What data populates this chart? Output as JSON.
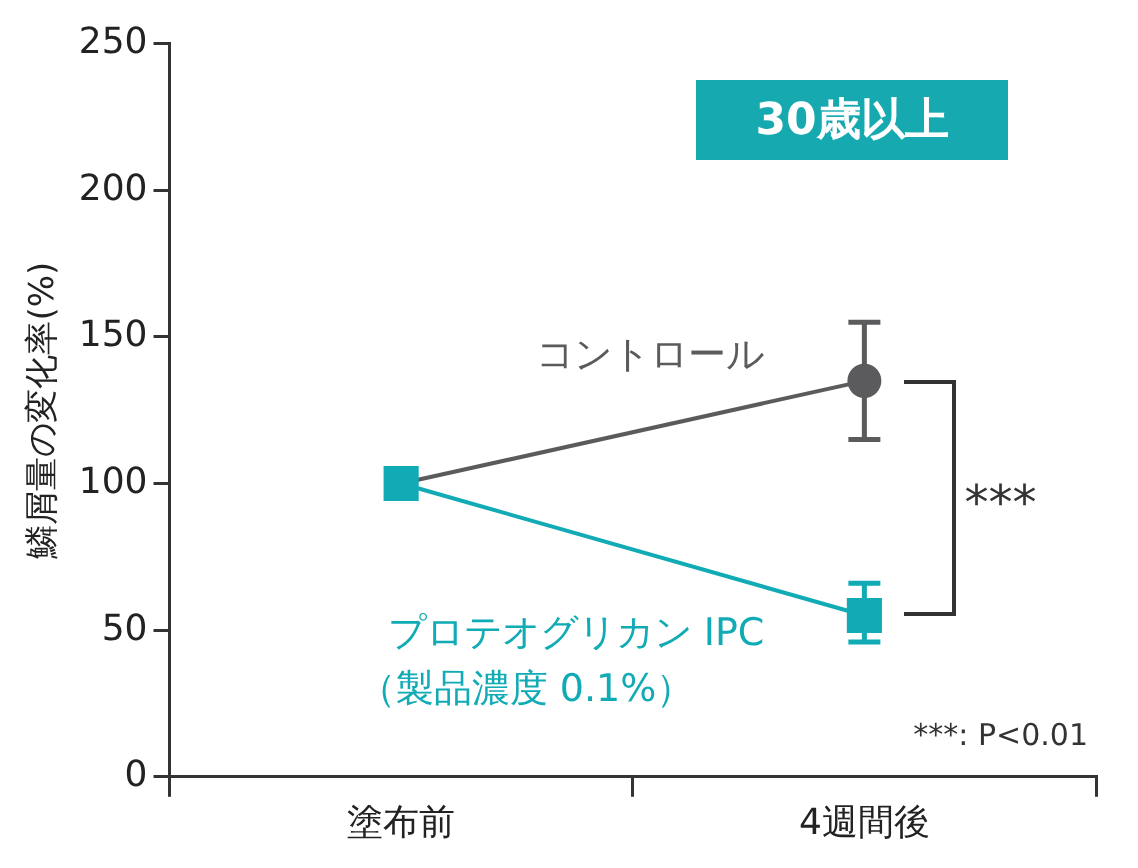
{
  "chart_data": {
    "type": "line",
    "title": "30歳以上",
    "ylabel": "鱗屑量の変化率(%)",
    "categories": [
      "塗布前",
      "4週間後"
    ],
    "series": [
      {
        "name": "コントロール",
        "color": "#5b5b5d",
        "marker": "circle",
        "values": [
          100,
          135
        ],
        "errors": [
          null,
          [
            115,
            155
          ]
        ]
      },
      {
        "name": "プロテオグリカン IPC",
        "color": "#11abb5",
        "marker": "square",
        "values": [
          100,
          55
        ],
        "errors": [
          null,
          [
            46,
            66
          ]
        ]
      }
    ],
    "ylim": [
      0,
      250
    ],
    "yticks": [
      0,
      50,
      100,
      150,
      200,
      250
    ],
    "grid": false,
    "legend": false,
    "annotations": [
      "（製品濃度 0.1%）",
      "***",
      "***: P<0.01"
    ]
  }
}
